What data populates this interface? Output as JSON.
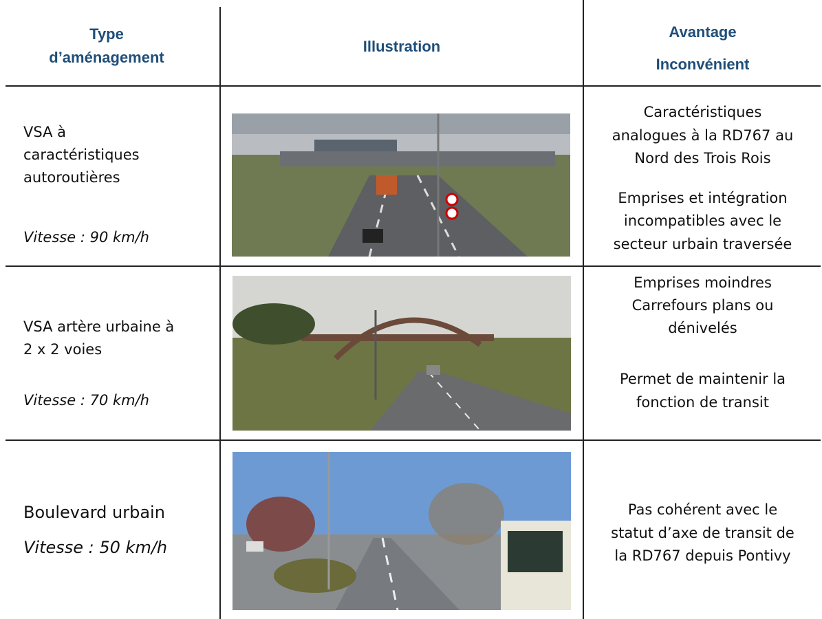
{
  "header": {
    "columns": [
      [
        "Type",
        "d’aménagement"
      ],
      [
        "Illustration"
      ],
      [
        "Avantage",
        "Inconvénient"
      ]
    ]
  },
  "rows": [
    {
      "type": [
        "VSA à",
        "caractéristiques",
        "autoroutières"
      ],
      "speed": "Vitesse : 90 km/h",
      "advantages": [
        "Caractéristiques",
        "analogues à la RD767 au",
        "Nord des Trois Rois",
        "Emprises et intégration",
        "incompatibles avec le",
        "secteur urbain traversée"
      ]
    },
    {
      "type": [
        "VSA artère urbaine à",
        "2 x 2 voies"
      ],
      "speed": "Vitesse :  70 km/h",
      "advantages": [
        "Emprises moindres",
        "Carrefours plans ou",
        "dénivelés",
        "Permet de maintenir la",
        "fonction de transit"
      ]
    },
    {
      "type": [
        "Boulevard urbain"
      ],
      "speed": "Vitesse : 50 km/h",
      "advantages": [
        "Pas cohérent avec le",
        "statut d’axe de transit de",
        "la RD767 depuis Pontivy"
      ]
    }
  ]
}
